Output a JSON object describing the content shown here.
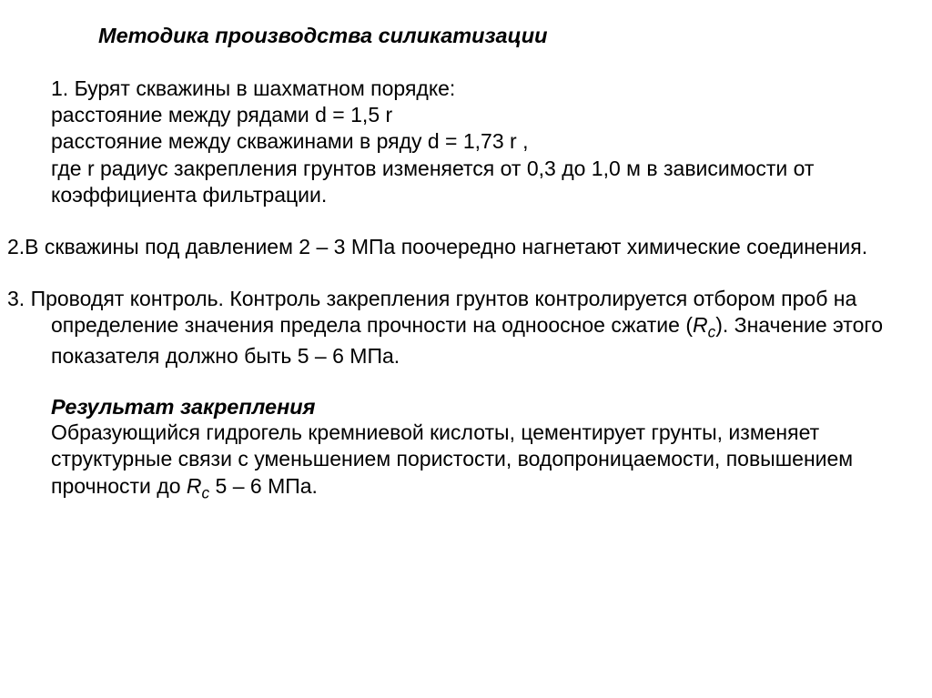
{
  "title": "Методика производства силикатизации",
  "p1_a": "1. Бурят скважины в шахматном порядке:",
  "p1_b": "расстояние между рядами d = 1,5 r",
  "p1_c": "расстояние между скважинами в ряду d = 1,73 r ,",
  "p1_d": "где r  радиус закрепления грунтов изменяется от 0,3 до 1,0 м в зависимости от коэффициента фильтрации.",
  "p2": "2.В скважины под давлением  2 – 3 МПа поочередно нагнетают химические соединения.",
  "p3_a": "3. Проводят контроль.  Контроль закрепления грунтов контролируется отбором проб на определение значения предела прочности на одноосное сжатие (",
  "p3_rc": "R",
  "p3_rc_sub": "с",
  "p3_b": "). Значение этого показателя должно быть 5 – 6 МПа.",
  "sub": "Результат закрепления",
  "p4_a": "Образующийся гидрогель кремниевой кислоты, цементирует грунты, изменяет структурные связи с уменьшением пористости, водопроницаемости, повышением прочности до ",
  "p4_rc": "R",
  "p4_rc_sub": "с",
  "p4_b": " 5 – 6 МПа.",
  "colors": {
    "text": "#000000",
    "background": "#ffffff"
  },
  "font": {
    "family": "Arial",
    "body_size_pt": 17,
    "title_size_pt": 17,
    "line_height": 1.27
  }
}
